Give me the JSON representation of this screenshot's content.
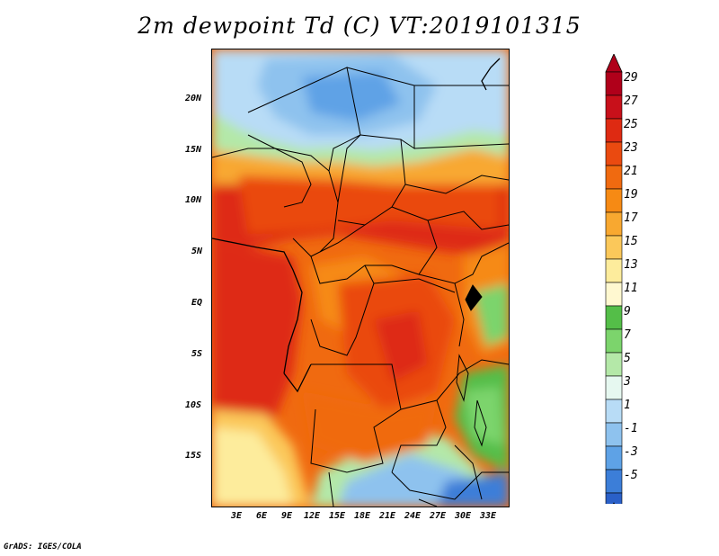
{
  "map": {
    "title": "2m dewpoint Td (C) VT:2019101315",
    "latitude_labels": [
      "20N",
      "15N",
      "10N",
      "5N",
      "EQ",
      "5S",
      "10S",
      "15S"
    ],
    "longitude_labels": [
      "3E",
      "6E",
      "9E",
      "12E",
      "15E",
      "18E",
      "21E",
      "24E",
      "27E",
      "30E",
      "33E"
    ],
    "colorbar": {
      "labels": [
        "29",
        "27",
        "25",
        "23",
        "21",
        "19",
        "17",
        "15",
        "13",
        "11",
        "9",
        "7",
        "5",
        "3",
        "1",
        "-1",
        "-3",
        "-5"
      ],
      "colors": [
        "#b0001a",
        "#c8101a",
        "#de2a12",
        "#ea4a10",
        "#f06a10",
        "#f68a14",
        "#f8a830",
        "#fbc85a",
        "#fdec9c",
        "#fff8d0",
        "#54be48",
        "#7cd46c",
        "#b4e8a8",
        "#e6f8f0",
        "#b8dcf6",
        "#8ec2ee",
        "#5ea2e6",
        "#3c7ed8",
        "#2a60c8"
      ],
      "top_arrow_color": "#b0001a",
      "bottom_arrow_color": "#2a60c8"
    },
    "credit": "GrADS: IGES/COLA"
  }
}
